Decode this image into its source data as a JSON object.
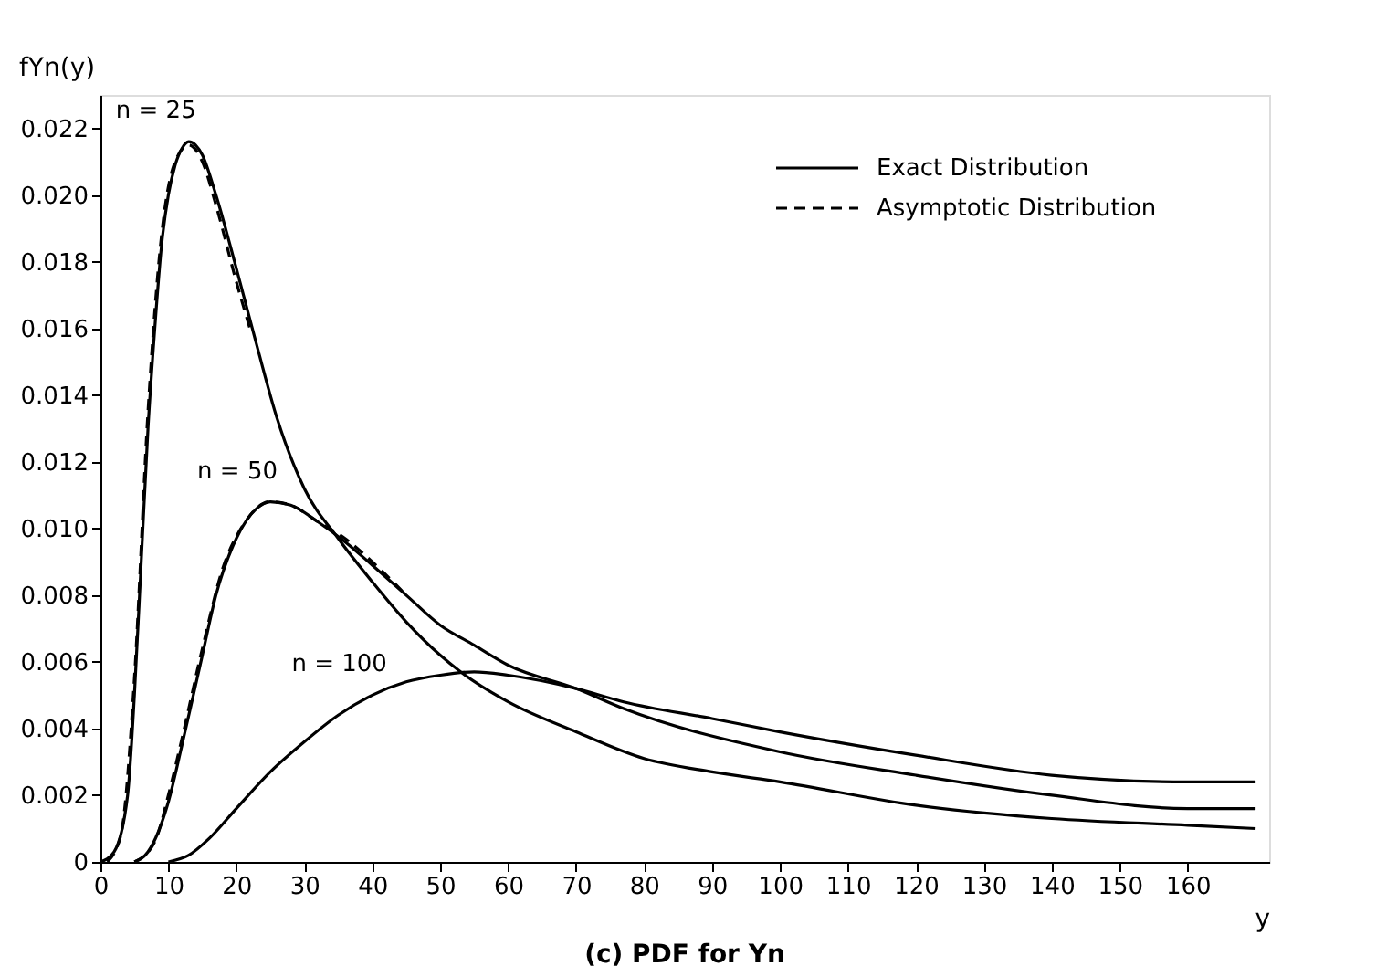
{
  "chart_data": {
    "type": "line",
    "title": "(c) PDF for Yn",
    "xlabel": "y",
    "ylabel": "fYn(y)",
    "xlim": [
      0,
      172
    ],
    "xticks": [
      0,
      10,
      20,
      30,
      40,
      50,
      60,
      70,
      80,
      90,
      100,
      110,
      120,
      130,
      140,
      150,
      160
    ],
    "ylim": [
      0,
      0.023
    ],
    "yticks": [
      0,
      0.002,
      0.004,
      0.006,
      0.008,
      {
        "value": 0.01,
        "label": "0.010"
      },
      0.012,
      0.014,
      0.016,
      0.018,
      {
        "value": 0.02,
        "label": "0.020"
      },
      0.022
    ],
    "grid": false,
    "legend": "top right",
    "marker": "none",
    "series": [
      {
        "name": "Exact Distribution",
        "color": "#000000",
        "line_style": "solid",
        "x": [
          0,
          2,
          4,
          5,
          6,
          7,
          8,
          9,
          10,
          11,
          12,
          13,
          14,
          15,
          17,
          20,
          23,
          26,
          30,
          35,
          40,
          45,
          50,
          53,
          60,
          70,
          80,
          90,
          100,
          120,
          140,
          160,
          170
        ],
        "values": [
          0,
          0.0003,
          0.002,
          0.005,
          0.009,
          0.013,
          0.016,
          0.0185,
          0.02,
          0.0209,
          0.0214,
          0.0216,
          0.0215,
          0.0212,
          0.02,
          0.0178,
          0.0155,
          0.0133,
          0.0112,
          0.0097,
          0.0084,
          0.0072,
          0.0062,
          0.0057,
          0.0048,
          0.0039,
          0.0031,
          0.0027,
          0.0024,
          0.0017,
          0.0013,
          0.0011,
          0.001
        ]
      },
      {
        "color": "#000000",
        "line_style": "solid",
        "x": [
          5,
          7,
          10,
          12,
          15,
          17,
          20,
          23,
          25,
          28,
          32,
          36,
          40,
          45,
          50,
          55,
          60,
          70,
          77,
          100,
          120,
          140,
          160,
          170
        ],
        "values": [
          0,
          0.0003,
          0.0018,
          0.0035,
          0.0062,
          0.008,
          0.0097,
          0.0106,
          0.0108,
          0.0107,
          0.0102,
          0.0096,
          0.0089,
          0.008,
          0.0071,
          0.0065,
          0.0059,
          0.0052,
          0.0046,
          0.0033,
          0.0026,
          0.002,
          0.0016,
          0.0016
        ]
      },
      {
        "color": "#000000",
        "line_style": "solid",
        "x": [
          10,
          13,
          16,
          20,
          25,
          30,
          35,
          40,
          45,
          50,
          55,
          60,
          70,
          77,
          90,
          100,
          120,
          140,
          160,
          170
        ],
        "values": [
          0,
          0.0002,
          0.0007,
          0.0016,
          0.0027,
          0.0036,
          0.0044,
          0.005,
          0.0054,
          0.0056,
          0.0057,
          0.0056,
          0.0052,
          0.0048,
          0.0043,
          0.0039,
          0.0032,
          0.0026,
          0.0024,
          0.0024
        ]
      },
      {
        "name": "Asymptotic Distribution",
        "color": "#000000",
        "line_style": "dashed",
        "x": [
          1,
          3,
          5,
          7,
          9,
          11,
          13,
          15,
          17,
          20,
          22
        ],
        "values": [
          0,
          0.0008,
          0.0055,
          0.0135,
          0.0188,
          0.021,
          0.0215,
          0.021,
          0.0197,
          0.0174,
          0.016
        ]
      },
      {
        "color": "#000000",
        "line_style": "dashed",
        "x": [
          5,
          8,
          10,
          12,
          15,
          18,
          21,
          25,
          28,
          32,
          36,
          40,
          45
        ],
        "values": [
          0,
          0.0006,
          0.002,
          0.0037,
          0.0064,
          0.0088,
          0.0101,
          0.0108,
          0.0107,
          0.0102,
          0.0097,
          0.009,
          0.008
        ]
      }
    ],
    "annotations": [
      {
        "text": "n = 25",
        "x": 13,
        "y": 0.0216
      },
      {
        "text": "n = 50",
        "x": 25,
        "y": 0.0108
      },
      {
        "text": "n = 100",
        "x": 40,
        "y": 0.005
      }
    ]
  }
}
